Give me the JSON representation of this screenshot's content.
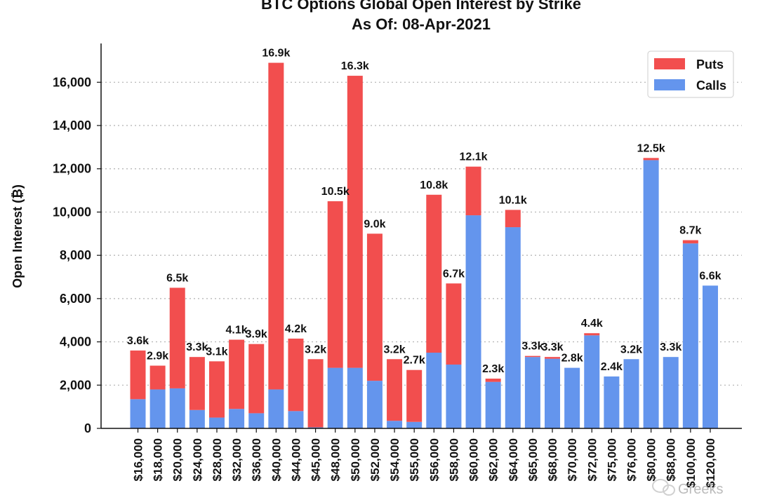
{
  "chart_data": {
    "type": "bar",
    "stacked": true,
    "title": "BTC Options Global Open Interest by Strike",
    "subtitle": "As Of: 08-Apr-2021",
    "ylabel": "Open Interest (₿)",
    "xlabel": "",
    "ylim": [
      0,
      17700
    ],
    "yticks": [
      0,
      2000,
      4000,
      6000,
      8000,
      10000,
      12000,
      14000,
      16000
    ],
    "ytick_labels": [
      "0",
      "2,000",
      "4,000",
      "6,000",
      "8,000",
      "10,000",
      "12,000",
      "14,000",
      "16,000"
    ],
    "grid": "horizontal dotted",
    "legend_position": "top-right",
    "categories": [
      "$16,000",
      "$18,000",
      "$20,000",
      "$24,000",
      "$28,000",
      "$32,000",
      "$36,000",
      "$40,000",
      "$44,000",
      "$45,000",
      "$48,000",
      "$50,000",
      "$52,000",
      "$54,000",
      "$55,000",
      "$56,000",
      "$58,000",
      "$60,000",
      "$62,000",
      "$64,000",
      "$65,000",
      "$68,000",
      "$70,000",
      "$72,000",
      "$75,000",
      "$76,000",
      "$80,000",
      "$88,000",
      "$100,000",
      "$120,000"
    ],
    "series": [
      {
        "name": "Calls",
        "color": "#6495ED",
        "values": [
          1350,
          1800,
          1850,
          850,
          500,
          900,
          700,
          1800,
          800,
          50,
          2800,
          2800,
          2200,
          350,
          300,
          3500,
          2950,
          9850,
          2150,
          9300,
          3300,
          3220,
          2800,
          4300,
          2400,
          3200,
          12400,
          3300,
          8550,
          6600
        ]
      },
      {
        "name": "Puts",
        "color": "#F24E4E",
        "values": [
          2250,
          1100,
          4650,
          2450,
          2600,
          3200,
          3200,
          15100,
          3350,
          3150,
          7700,
          13500,
          6800,
          2850,
          2400,
          7300,
          3750,
          2250,
          150,
          800,
          50,
          80,
          0,
          100,
          0,
          0,
          100,
          0,
          150,
          0
        ]
      }
    ],
    "bar_labels": [
      "3.6k",
      "2.9k",
      "6.5k",
      "3.3k",
      "3.1k",
      "4.1k",
      "3.9k",
      "16.9k",
      "4.2k",
      "3.2k",
      "10.5k",
      "16.3k",
      "9.0k",
      "3.2k",
      "2.7k",
      "10.8k",
      "6.7k",
      "12.1k",
      "2.3k",
      "10.1k",
      "3.3k",
      "3.3k",
      "2.8k",
      "4.4k",
      "2.4k",
      "3.2k",
      "12.5k",
      "3.3k",
      "8.7k",
      "6.6k"
    ]
  },
  "watermark": {
    "text": "Greeks",
    "icon": "wechat-icon"
  }
}
